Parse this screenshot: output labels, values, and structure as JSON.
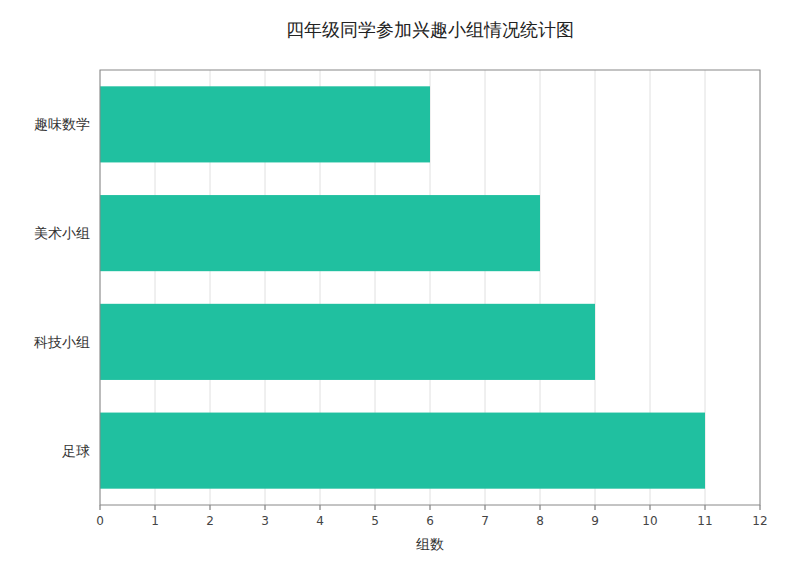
{
  "chart_data": {
    "type": "bar",
    "orientation": "horizontal",
    "title": "四年级同学参加兴趣小组情况统计图",
    "xlabel": "组数",
    "categories": [
      "趣味数学",
      "美术小组",
      "科技小组",
      "足球"
    ],
    "values": [
      6,
      8,
      9,
      11
    ],
    "color": "#20c0a0",
    "xlim": [
      0,
      12
    ],
    "xticks": [
      0,
      1,
      2,
      3,
      4,
      5,
      6,
      7,
      8,
      9,
      10,
      11,
      12
    ],
    "grid": true
  }
}
